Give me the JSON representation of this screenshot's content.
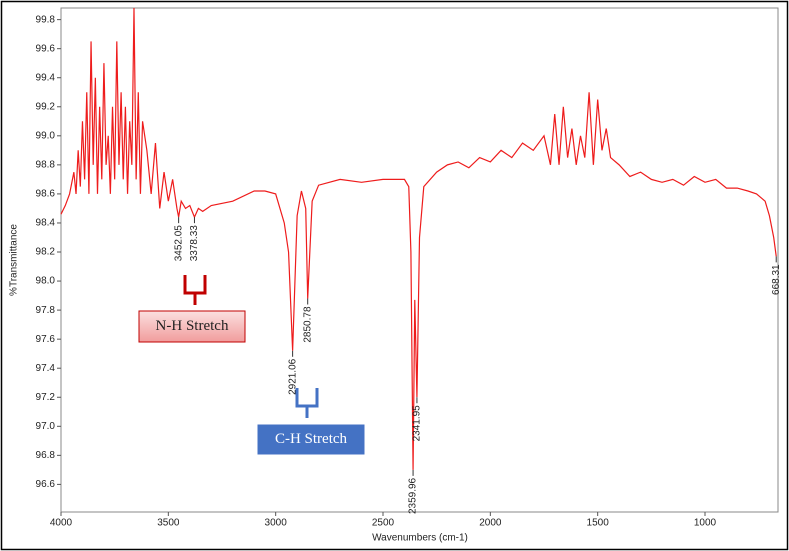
{
  "chart_data": {
    "type": "line",
    "x_label": "Wavenumbers (cm-1)",
    "y_label": "%Transmittance",
    "x": [
      4000,
      3980,
      3960,
      3940,
      3930,
      3920,
      3910,
      3900,
      3890,
      3880,
      3870,
      3860,
      3850,
      3840,
      3830,
      3820,
      3810,
      3800,
      3790,
      3780,
      3770,
      3760,
      3750,
      3740,
      3730,
      3720,
      3710,
      3700,
      3690,
      3680,
      3670,
      3660,
      3650,
      3640,
      3630,
      3620,
      3600,
      3580,
      3560,
      3540,
      3520,
      3500,
      3480,
      3460,
      3452.05,
      3440,
      3420,
      3400,
      3378.33,
      3360,
      3340,
      3300,
      3200,
      3100,
      3050,
      3000,
      2960,
      2940,
      2921.06,
      2900,
      2880,
      2860,
      2850.78,
      2830,
      2800,
      2700,
      2600,
      2500,
      2400,
      2380,
      2370,
      2359.96,
      2352,
      2341.95,
      2330,
      2310,
      2250,
      2200,
      2150,
      2100,
      2050,
      2000,
      1950,
      1900,
      1850,
      1800,
      1750,
      1720,
      1700,
      1680,
      1660,
      1640,
      1620,
      1600,
      1580,
      1560,
      1540,
      1520,
      1500,
      1480,
      1460,
      1440,
      1400,
      1350,
      1300,
      1250,
      1200,
      1150,
      1100,
      1050,
      1000,
      950,
      900,
      850,
      800,
      760,
      720,
      700,
      680,
      668.31
    ],
    "series": [
      {
        "color": "#ee1c1c",
        "values": [
          98.46,
          98.52,
          98.6,
          98.75,
          98.6,
          98.9,
          98.65,
          99.1,
          98.7,
          99.3,
          98.6,
          99.65,
          98.8,
          99.4,
          98.6,
          99.2,
          98.7,
          99.5,
          98.8,
          99.0,
          98.6,
          99.2,
          98.7,
          99.65,
          98.8,
          99.3,
          98.7,
          99.2,
          98.6,
          99.1,
          98.8,
          99.88,
          98.7,
          99.3,
          98.6,
          99.1,
          98.9,
          98.6,
          98.95,
          98.5,
          98.75,
          98.55,
          98.7,
          98.5,
          98.44,
          98.55,
          98.5,
          98.52,
          98.44,
          98.5,
          98.48,
          98.52,
          98.55,
          98.62,
          98.62,
          98.6,
          98.4,
          98.2,
          97.52,
          98.45,
          98.62,
          98.5,
          97.88,
          98.55,
          98.66,
          98.7,
          98.68,
          98.7,
          98.7,
          98.65,
          98.2,
          96.7,
          97.87,
          97.2,
          98.3,
          98.65,
          98.75,
          98.8,
          98.82,
          98.78,
          98.85,
          98.82,
          98.9,
          98.85,
          98.95,
          98.9,
          99.0,
          98.8,
          99.15,
          98.8,
          99.2,
          98.85,
          99.05,
          98.8,
          99.0,
          98.85,
          99.3,
          98.8,
          99.25,
          98.9,
          99.05,
          98.85,
          98.8,
          98.72,
          98.75,
          98.7,
          98.68,
          98.7,
          98.66,
          98.72,
          98.68,
          98.7,
          98.64,
          98.64,
          98.62,
          98.6,
          98.55,
          98.45,
          98.3,
          98.17
        ]
      }
    ],
    "peaks": [
      {
        "x": 3452.05,
        "y": 98.44
      },
      {
        "x": 3378.33,
        "y": 98.44
      },
      {
        "x": 2921.06,
        "y": 97.52
      },
      {
        "x": 2850.78,
        "y": 97.88
      },
      {
        "x": 2359.96,
        "y": 96.7
      },
      {
        "x": 2341.95,
        "y": 97.2
      },
      {
        "x": 668.31,
        "y": 98.17
      }
    ],
    "annotations": [
      {
        "text": "N-H Stretch",
        "color": "#c00000"
      },
      {
        "text": "C-H Stretch",
        "color": "#4472c4"
      }
    ],
    "xlim": [
      4000,
      660
    ],
    "ylim": [
      96.41,
      99.88
    ],
    "xticks": [
      4000,
      3500,
      3000,
      2500,
      2000,
      1500,
      1000
    ],
    "yticks": [
      96.6,
      96.8,
      {
        "value": 97,
        "label": "97.0"
      },
      97.2,
      97.4,
      97.6,
      97.8,
      {
        "value": 98,
        "label": "98.0"
      },
      98.2,
      98.4,
      98.6,
      98.8,
      {
        "value": 99,
        "label": "99.0"
      },
      99.2,
      99.4,
      99.6,
      99.8
    ]
  }
}
